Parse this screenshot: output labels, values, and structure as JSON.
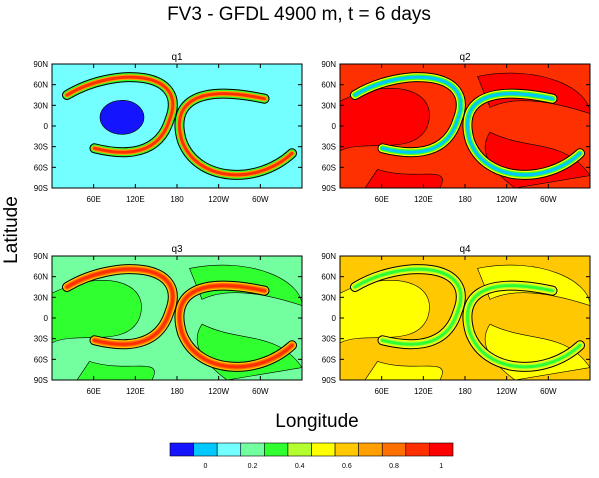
{
  "figure": {
    "title": "FV3 - GFDL 4900 m, t = 6 days",
    "ylabel": "Latitude",
    "xlabel": "Longitude"
  },
  "chart_data": [
    {
      "type": "heatmap",
      "title": "q1",
      "background_value": 0.1,
      "features": [
        "blue blob near 60E-90E, 0-30N (value ~0)",
        "two thin crescent filaments with high values"
      ],
      "xticks": [
        "60E",
        "120E",
        "180",
        "120W",
        "60W"
      ],
      "yticks": [
        "90N",
        "60N",
        "30N",
        "0",
        "30S",
        "60S",
        "90S"
      ],
      "xlim": [
        0,
        360
      ],
      "ylim": [
        -90,
        90
      ]
    },
    {
      "type": "heatmap",
      "title": "q2",
      "background_value": 0.85,
      "features": [
        "two crescent filaments with low values",
        "stretched tracer structure"
      ],
      "xticks": [
        "60E",
        "120E",
        "180",
        "120W",
        "60W"
      ],
      "yticks": [
        "90N",
        "60N",
        "30N",
        "0",
        "30S",
        "60S",
        "90S"
      ],
      "xlim": [
        0,
        360
      ],
      "ylim": [
        -90,
        90
      ]
    },
    {
      "type": "heatmap",
      "title": "q3",
      "background_value": 0.15,
      "features": [
        "two crescent filaments with high values",
        "stretched tracer structure"
      ],
      "xticks": [
        "60E",
        "120E",
        "180",
        "120W",
        "60W"
      ],
      "yticks": [
        "90N",
        "60N",
        "30N",
        "0",
        "30S",
        "60S",
        "90S"
      ],
      "xlim": [
        0,
        360
      ],
      "ylim": [
        -90,
        90
      ]
    },
    {
      "type": "heatmap",
      "title": "q4",
      "background_value": 0.6,
      "features": [
        "two crescent filaments with mid-low values",
        "stretched tracer structure"
      ],
      "xticks": [
        "60E",
        "120E",
        "180",
        "120W",
        "60W"
      ],
      "yticks": [
        "90N",
        "60N",
        "30N",
        "0",
        "30S",
        "60S",
        "90S"
      ],
      "xlim": [
        0,
        360
      ],
      "ylim": [
        -90,
        90
      ]
    }
  ],
  "colorbar": {
    "colors": [
      "#1414ff",
      "#00c8ff",
      "#73ffff",
      "#73ffa0",
      "#30ff30",
      "#b4ff30",
      "#ffff00",
      "#ffc800",
      "#ffa000",
      "#ff7000",
      "#ff3000",
      "#ff0000"
    ],
    "labels": [
      "0",
      "0.2",
      "0.4",
      "0.6",
      "0.8",
      "1"
    ],
    "label_positions": [
      2,
      4,
      6,
      8,
      10,
      12
    ]
  }
}
